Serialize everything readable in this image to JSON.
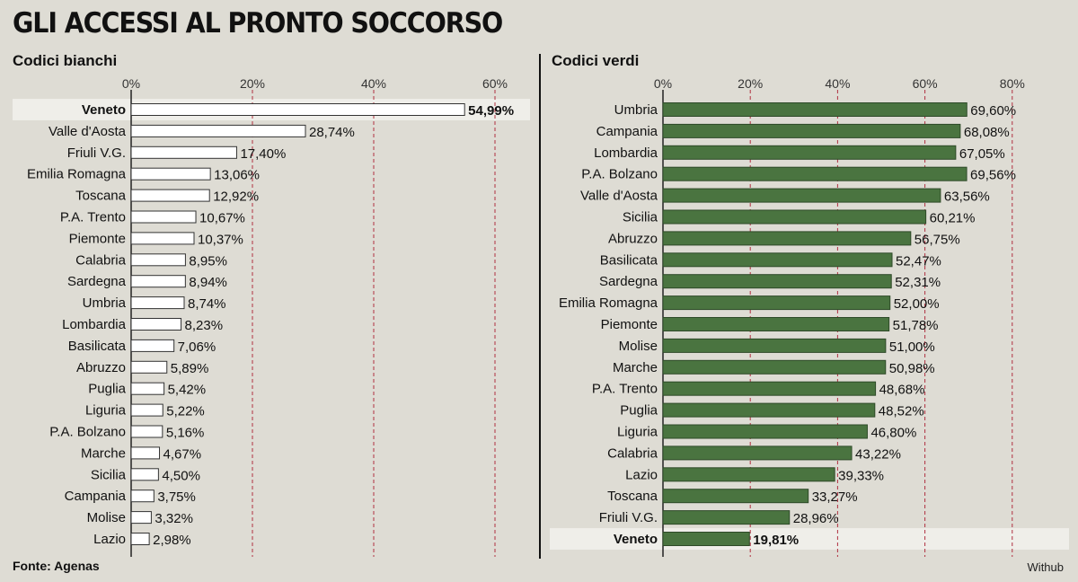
{
  "title": "GLI ACCESSI AL PRONTO SOCCORSO",
  "source": "Fonte: Agenas",
  "credit": "Withub",
  "colors": {
    "background": "#dedcd4",
    "white_bar": "#ffffff",
    "green_bar": "#4a7440",
    "highlight_text": "#b01c2e",
    "highlight_row": "#efeee9",
    "grid": "#b03040"
  },
  "chart_data": [
    {
      "type": "bar",
      "orientation": "horizontal",
      "title": "Codici bianchi",
      "xlim": [
        0,
        65
      ],
      "ticks": [
        0,
        20,
        40,
        60
      ],
      "tick_labels": [
        "0%",
        "20%",
        "40%",
        "60%"
      ],
      "grid": "dashed vertical",
      "highlight": "Veneto",
      "categories": [
        "Veneto",
        "Valle d'Aosta",
        "Friuli V.G.",
        "Emilia Romagna",
        "Toscana",
        "P.A. Trento",
        "Piemonte",
        "Calabria",
        "Sardegna",
        "Umbria",
        "Lombardia",
        "Basilicata",
        "Abruzzo",
        "Puglia",
        "Liguria",
        "P.A. Bolzano",
        "Marche",
        "Sicilia",
        "Campania",
        "Molise",
        "Lazio"
      ],
      "values": [
        54.99,
        28.74,
        17.4,
        13.06,
        12.92,
        10.67,
        10.37,
        8.95,
        8.94,
        8.74,
        8.23,
        7.06,
        5.89,
        5.42,
        5.22,
        5.16,
        4.67,
        4.5,
        3.75,
        3.32,
        2.98
      ],
      "value_labels": [
        "54,99%",
        "28,74%",
        "17,40%",
        "13,06%",
        "12,92%",
        "10,67%",
        "10,37%",
        "8,95%",
        "8,94%",
        "8,74%",
        "8,23%",
        "7,06%",
        "5,89%",
        "5,42%",
        "5,22%",
        "5,16%",
        "4,67%",
        "4,50%",
        "3,75%",
        "3,32%",
        "2,98%"
      ]
    },
    {
      "type": "bar",
      "orientation": "horizontal",
      "title": "Codici verdi",
      "xlim": [
        0,
        90
      ],
      "ticks": [
        0,
        20,
        40,
        60,
        80
      ],
      "tick_labels": [
        "0%",
        "20%",
        "40%",
        "60%",
        "80%"
      ],
      "grid": "dashed vertical",
      "highlight": "Veneto",
      "categories": [
        "Umbria",
        "Campania",
        "Lombardia",
        "P.A. Bolzano",
        "Valle d'Aosta",
        "Sicilia",
        "Abruzzo",
        "Basilicata",
        "Sardegna",
        "Emilia Romagna",
        "Piemonte",
        "Molise",
        "Marche",
        "P.A. Trento",
        "Puglia",
        "Liguria",
        "Calabria",
        "Lazio",
        "Toscana",
        "Friuli V.G.",
        "Veneto"
      ],
      "values": [
        69.6,
        68.08,
        67.05,
        69.56,
        63.56,
        60.21,
        56.75,
        52.47,
        52.31,
        52.0,
        51.78,
        51.0,
        50.98,
        48.68,
        48.52,
        46.8,
        43.22,
        39.33,
        33.27,
        28.96,
        19.81
      ],
      "value_labels": [
        "69,60%",
        "68,08%",
        "67,05%",
        "69,56%",
        "63,56%",
        "60,21%",
        "56,75%",
        "52,47%",
        "52,31%",
        "52,00%",
        "51,78%",
        "51,00%",
        "50,98%",
        "48,68%",
        "48,52%",
        "46,80%",
        "43,22%",
        "39,33%",
        "33,27%",
        "28,96%",
        "19,81%"
      ]
    }
  ]
}
